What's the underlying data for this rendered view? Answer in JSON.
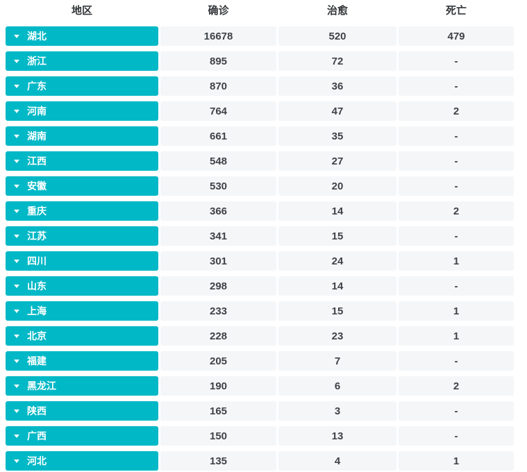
{
  "colors": {
    "accent": "#00b8c6",
    "cell_bg": "#f4f6f8",
    "text_dark": "#3e4247",
    "header_text": "#333639",
    "region_text": "#ffffff"
  },
  "icons": {
    "region_chevron": "chevron-down-icon"
  },
  "table": {
    "headers": {
      "region": "地区",
      "confirmed": "确诊",
      "cured": "治愈",
      "deaths": "死亡"
    },
    "rows": [
      {
        "region": "湖北",
        "confirmed": "16678",
        "cured": "520",
        "deaths": "479"
      },
      {
        "region": "浙江",
        "confirmed": "895",
        "cured": "72",
        "deaths": "-"
      },
      {
        "region": "广东",
        "confirmed": "870",
        "cured": "36",
        "deaths": "-"
      },
      {
        "region": "河南",
        "confirmed": "764",
        "cured": "47",
        "deaths": "2"
      },
      {
        "region": "湖南",
        "confirmed": "661",
        "cured": "35",
        "deaths": "-"
      },
      {
        "region": "江西",
        "confirmed": "548",
        "cured": "27",
        "deaths": "-"
      },
      {
        "region": "安徽",
        "confirmed": "530",
        "cured": "20",
        "deaths": "-"
      },
      {
        "region": "重庆",
        "confirmed": "366",
        "cured": "14",
        "deaths": "2"
      },
      {
        "region": "江苏",
        "confirmed": "341",
        "cured": "15",
        "deaths": "-"
      },
      {
        "region": "四川",
        "confirmed": "301",
        "cured": "24",
        "deaths": "1"
      },
      {
        "region": "山东",
        "confirmed": "298",
        "cured": "14",
        "deaths": "-"
      },
      {
        "region": "上海",
        "confirmed": "233",
        "cured": "15",
        "deaths": "1"
      },
      {
        "region": "北京",
        "confirmed": "228",
        "cured": "23",
        "deaths": "1"
      },
      {
        "region": "福建",
        "confirmed": "205",
        "cured": "7",
        "deaths": "-"
      },
      {
        "region": "黑龙江",
        "confirmed": "190",
        "cured": "6",
        "deaths": "2"
      },
      {
        "region": "陕西",
        "confirmed": "165",
        "cured": "3",
        "deaths": "-"
      },
      {
        "region": "广西",
        "confirmed": "150",
        "cured": "13",
        "deaths": "-"
      },
      {
        "region": "河北",
        "confirmed": "135",
        "cured": "4",
        "deaths": "1"
      }
    ]
  }
}
